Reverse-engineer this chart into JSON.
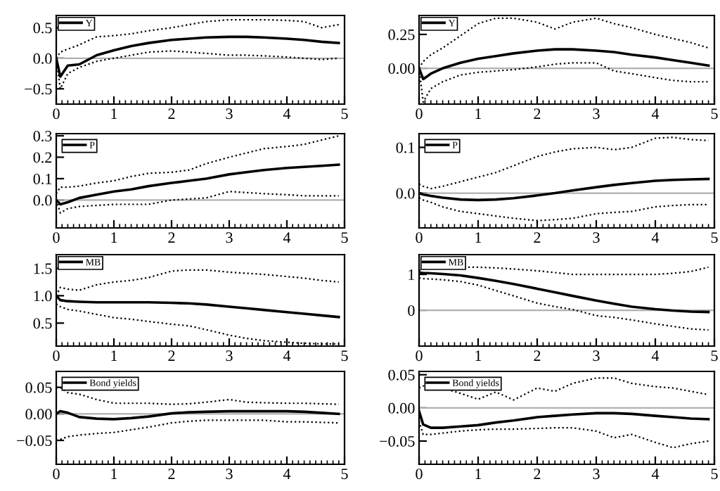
{
  "chart_data": [
    {
      "type": "line",
      "x": [
        0,
        0.07,
        0.2,
        0.4,
        0.7,
        1,
        1.3,
        1.6,
        2,
        2.3,
        2.6,
        3,
        3.3,
        3.6,
        4,
        4.3,
        4.6,
        4.9
      ],
      "xlim": [
        0,
        5
      ],
      "xticks": [
        0,
        1,
        2,
        3,
        4,
        5
      ],
      "ylim": [
        -0.75,
        0.7
      ],
      "yticks": [
        {
          "value": 0.5,
          "label": "0.5"
        },
        {
          "value": 0,
          "label": "0.0"
        },
        {
          "value": -0.5,
          "label": "−0.5"
        }
      ],
      "legend": "top left",
      "ref_lines": [
        {
          "axis": "y",
          "value": 0,
          "color": "#b0b0b0"
        }
      ],
      "series": [
        {
          "name": "Y",
          "color": "#000000",
          "values": [
            0,
            -0.3,
            -0.12,
            -0.1,
            0.05,
            0.13,
            0.2,
            0.25,
            0.3,
            0.32,
            0.34,
            0.35,
            0.35,
            0.34,
            0.32,
            0.3,
            0.27,
            0.25
          ]
        },
        {
          "color": "#000000",
          "line_style": "dotted",
          "values": [
            0,
            0.1,
            0.15,
            0.22,
            0.35,
            0.37,
            0.4,
            0.45,
            0.5,
            0.55,
            0.6,
            0.63,
            0.63,
            0.63,
            0.62,
            0.6,
            0.5,
            0.55
          ]
        },
        {
          "color": "#000000",
          "line_style": "dotted",
          "values": [
            0,
            -0.5,
            -0.25,
            -0.15,
            -0.05,
            0,
            0.05,
            0.1,
            0.12,
            0.1,
            0.08,
            0.05,
            0.05,
            0.04,
            0.02,
            0,
            -0.02,
            0
          ]
        }
      ]
    },
    {
      "type": "line",
      "x": [
        0,
        0.07,
        0.2,
        0.4,
        0.7,
        1,
        1.3,
        1.6,
        2,
        2.3,
        2.6,
        3,
        3.3,
        3.6,
        4,
        4.3,
        4.6,
        4.9
      ],
      "xlim": [
        0,
        5
      ],
      "xticks": [
        0,
        1,
        2,
        3,
        4,
        5
      ],
      "ylim": [
        -0.265,
        0.39
      ],
      "yticks": [
        {
          "value": 0.25,
          "label": "0.25"
        },
        {
          "value": 0,
          "label": "0.00"
        }
      ],
      "legend": "top left",
      "ref_lines": [
        {
          "axis": "y",
          "value": 0,
          "color": "#b0b0b0"
        }
      ],
      "series": [
        {
          "name": "Y",
          "color": "#000000",
          "values": [
            0,
            -0.08,
            -0.04,
            0,
            0.04,
            0.07,
            0.09,
            0.11,
            0.13,
            0.14,
            0.14,
            0.13,
            0.12,
            0.1,
            0.08,
            0.06,
            0.04,
            0.02
          ]
        },
        {
          "color": "#000000",
          "line_style": "dotted",
          "values": [
            0,
            0.05,
            0.1,
            0.15,
            0.24,
            0.33,
            0.37,
            0.37,
            0.34,
            0.29,
            0.34,
            0.37,
            0.33,
            0.3,
            0.25,
            0.22,
            0.19,
            0.15
          ]
        },
        {
          "color": "#000000",
          "line_style": "dotted",
          "values": [
            0,
            -0.25,
            -0.15,
            -0.1,
            -0.05,
            -0.03,
            -0.02,
            -0.01,
            0.01,
            0.03,
            0.04,
            0.04,
            -0.02,
            -0.04,
            -0.07,
            -0.09,
            -0.1,
            -0.1
          ]
        }
      ]
    },
    {
      "type": "line",
      "x": [
        0,
        0.07,
        0.2,
        0.4,
        0.7,
        1,
        1.3,
        1.6,
        2,
        2.3,
        2.6,
        3,
        3.3,
        3.6,
        4,
        4.3,
        4.6,
        4.9
      ],
      "xlim": [
        0,
        5
      ],
      "xticks": [
        0,
        1,
        2,
        3,
        4,
        5
      ],
      "ylim": [
        -0.13,
        0.31
      ],
      "yticks": [
        {
          "value": 0.3,
          "label": "0.3"
        },
        {
          "value": 0.2,
          "label": "0.2"
        },
        {
          "value": 0.1,
          "label": "0.1"
        },
        {
          "value": 0,
          "label": "0.0"
        }
      ],
      "legend": "top left",
      "ref_lines": [
        {
          "axis": "y",
          "value": 0,
          "color": "#b0b0b0"
        }
      ],
      "series": [
        {
          "name": "P",
          "color": "#000000",
          "values": [
            0,
            -0.02,
            -0.01,
            0.01,
            0.025,
            0.04,
            0.05,
            0.065,
            0.08,
            0.09,
            0.1,
            0.12,
            0.13,
            0.14,
            0.15,
            0.155,
            0.16,
            0.165
          ]
        },
        {
          "color": "#000000",
          "line_style": "dotted",
          "values": [
            0.03,
            0.06,
            0.06,
            0.065,
            0.08,
            0.09,
            0.11,
            0.125,
            0.13,
            0.14,
            0.17,
            0.2,
            0.22,
            0.24,
            0.25,
            0.26,
            0.28,
            0.3
          ]
        },
        {
          "color": "#000000",
          "line_style": "dotted",
          "values": [
            0,
            -0.06,
            -0.04,
            -0.03,
            -0.025,
            -0.02,
            -0.02,
            -0.02,
            0,
            0.005,
            0.01,
            0.04,
            0.035,
            0.03,
            0.025,
            0.02,
            0.02,
            0.02
          ]
        }
      ]
    },
    {
      "type": "line",
      "x": [
        0,
        0.07,
        0.2,
        0.4,
        0.7,
        1,
        1.3,
        1.6,
        2,
        2.3,
        2.6,
        3,
        3.3,
        3.6,
        4,
        4.3,
        4.6,
        4.9
      ],
      "xlim": [
        0,
        5
      ],
      "xticks": [
        0,
        1,
        2,
        3,
        4,
        5
      ],
      "ylim": [
        -0.076,
        0.13
      ],
      "yticks": [
        {
          "value": 0.1,
          "label": "0.1"
        },
        {
          "value": 0,
          "label": "0.0"
        }
      ],
      "legend": "top left",
      "ref_lines": [
        {
          "axis": "y",
          "value": 0,
          "color": "#b0b0b0"
        }
      ],
      "series": [
        {
          "name": "P",
          "color": "#000000",
          "values": [
            0,
            -0.003,
            -0.006,
            -0.01,
            -0.014,
            -0.015,
            -0.014,
            -0.011,
            -0.005,
            0,
            0.006,
            0.013,
            0.018,
            0.022,
            0.027,
            0.029,
            0.03,
            0.031
          ]
        },
        {
          "color": "#000000",
          "line_style": "dotted",
          "values": [
            0.02,
            0.015,
            0.01,
            0.015,
            0.025,
            0.035,
            0.045,
            0.06,
            0.08,
            0.09,
            0.097,
            0.1,
            0.095,
            0.1,
            0.12,
            0.122,
            0.117,
            0.115
          ]
        },
        {
          "color": "#000000",
          "line_style": "dotted",
          "values": [
            -0.01,
            -0.015,
            -0.02,
            -0.03,
            -0.04,
            -0.045,
            -0.05,
            -0.055,
            -0.06,
            -0.058,
            -0.055,
            -0.045,
            -0.042,
            -0.04,
            -0.03,
            -0.027,
            -0.025,
            -0.025
          ]
        }
      ]
    },
    {
      "type": "line",
      "x": [
        0,
        0.07,
        0.2,
        0.4,
        0.7,
        1,
        1.3,
        1.6,
        2,
        2.3,
        2.6,
        3,
        3.3,
        3.6,
        4,
        4.3,
        4.6,
        4.9
      ],
      "xlim": [
        0,
        5
      ],
      "xticks": [
        0,
        1,
        2,
        3,
        4,
        5
      ],
      "ylim": [
        0.08,
        1.75
      ],
      "yticks": [
        {
          "value": 1.5,
          "label": "1.5"
        },
        {
          "value": 1.0,
          "label": "1.0"
        },
        {
          "value": 0.5,
          "label": "0.5"
        }
      ],
      "legend": "top left",
      "series": [
        {
          "name": "MB",
          "color": "#000000",
          "values": [
            1.0,
            0.92,
            0.9,
            0.89,
            0.88,
            0.88,
            0.88,
            0.88,
            0.87,
            0.86,
            0.84,
            0.8,
            0.77,
            0.74,
            0.7,
            0.67,
            0.64,
            0.61
          ]
        },
        {
          "color": "#000000",
          "line_style": "dotted",
          "values": [
            1.0,
            1.15,
            1.12,
            1.1,
            1.2,
            1.25,
            1.28,
            1.33,
            1.45,
            1.47,
            1.47,
            1.43,
            1.41,
            1.39,
            1.35,
            1.32,
            1.28,
            1.25
          ]
        },
        {
          "color": "#000000",
          "line_style": "dotted",
          "values": [
            0.85,
            0.8,
            0.75,
            0.72,
            0.66,
            0.6,
            0.57,
            0.53,
            0.48,
            0.45,
            0.38,
            0.28,
            0.22,
            0.18,
            0.15,
            0.13,
            0.12,
            0.12
          ]
        }
      ]
    },
    {
      "type": "line",
      "x": [
        0,
        0.07,
        0.2,
        0.4,
        0.7,
        1,
        1.3,
        1.6,
        2,
        2.3,
        2.6,
        3,
        3.3,
        3.6,
        4,
        4.3,
        4.6,
        4.9
      ],
      "xlim": [
        0,
        5
      ],
      "xticks": [
        0,
        1,
        2,
        3,
        4,
        5
      ],
      "ylim": [
        -1,
        1.55
      ],
      "yticks": [
        1,
        0
      ],
      "legend": "top left",
      "ref_lines": [
        {
          "axis": "y",
          "value": 0,
          "color": "#b0b0b0"
        }
      ],
      "series": [
        {
          "name": "MB",
          "color": "#000000",
          "values": [
            1.05,
            1.04,
            1.03,
            1.01,
            0.97,
            0.9,
            0.82,
            0.73,
            0.6,
            0.5,
            0.4,
            0.27,
            0.18,
            0.1,
            0.03,
            -0.01,
            -0.04,
            -0.05
          ]
        },
        {
          "color": "#000000",
          "line_style": "dotted",
          "values": [
            1.1,
            1.15,
            1.18,
            1.2,
            1.2,
            1.2,
            1.18,
            1.15,
            1.1,
            1.05,
            1.0,
            1.0,
            1.0,
            1.0,
            1.0,
            1.03,
            1.08,
            1.2
          ]
        },
        {
          "color": "#000000",
          "line_style": "dotted",
          "values": [
            0.9,
            0.88,
            0.87,
            0.85,
            0.8,
            0.7,
            0.55,
            0.4,
            0.2,
            0.1,
            0.02,
            -0.15,
            -0.2,
            -0.27,
            -0.38,
            -0.45,
            -0.52,
            -0.55
          ]
        }
      ]
    },
    {
      "type": "line",
      "x": [
        0,
        0.07,
        0.2,
        0.4,
        0.7,
        1,
        1.3,
        1.6,
        2,
        2.3,
        2.6,
        3,
        3.3,
        3.6,
        4,
        4.3,
        4.6,
        4.9
      ],
      "xlim": [
        0,
        5
      ],
      "xticks": [
        0,
        1,
        2,
        3,
        4,
        5
      ],
      "ylim": [
        -0.095,
        0.08
      ],
      "yticks": [
        {
          "value": 0.05,
          "label": "0.05"
        },
        {
          "value": 0,
          "label": "0.00"
        },
        {
          "value": -0.05,
          "label": "−0.05"
        }
      ],
      "legend": "top left",
      "ref_lines": [
        {
          "axis": "y",
          "value": 0,
          "color": "#b0b0b0"
        }
      ],
      "series": [
        {
          "name": "Bond yields",
          "color": "#000000",
          "values": [
            0,
            0.005,
            0.002,
            -0.006,
            -0.009,
            -0.01,
            -0.008,
            -0.005,
            0.001,
            0.003,
            0.004,
            0.005,
            0.005,
            0.005,
            0.005,
            0.004,
            0.002,
            0
          ]
        },
        {
          "color": "#000000",
          "line_style": "dotted",
          "values": [
            0.05,
            0.05,
            0.04,
            0.037,
            0.027,
            0.02,
            0.02,
            0.02,
            0.018,
            0.019,
            0.022,
            0.027,
            0.022,
            0.021,
            0.02,
            0.02,
            0.019,
            0.018
          ]
        },
        {
          "color": "#000000",
          "line_style": "dotted",
          "values": [
            -0.05,
            -0.048,
            -0.043,
            -0.04,
            -0.037,
            -0.035,
            -0.03,
            -0.025,
            -0.017,
            -0.014,
            -0.012,
            -0.012,
            -0.012,
            -0.012,
            -0.015,
            -0.015,
            -0.016,
            -0.017
          ]
        }
      ]
    },
    {
      "type": "line",
      "x": [
        0,
        0.07,
        0.2,
        0.4,
        0.7,
        1,
        1.3,
        1.6,
        2,
        2.3,
        2.6,
        3,
        3.3,
        3.6,
        4,
        4.3,
        4.6,
        4.9
      ],
      "xlim": [
        0,
        5
      ],
      "xticks": [
        0,
        1,
        2,
        3,
        4,
        5
      ],
      "ylim": [
        -0.085,
        0.055
      ],
      "yticks": [
        {
          "value": 0.05,
          "label": "0.05"
        },
        {
          "value": 0,
          "label": "0.00"
        },
        {
          "value": -0.05,
          "label": "−0.05"
        }
      ],
      "legend": "top left",
      "ref_lines": [
        {
          "axis": "y",
          "value": 0,
          "color": "#b0b0b0"
        }
      ],
      "series": [
        {
          "name": "Bond yields",
          "color": "#000000",
          "values": [
            -0.005,
            -0.025,
            -0.03,
            -0.03,
            -0.028,
            -0.026,
            -0.022,
            -0.019,
            -0.014,
            -0.012,
            -0.01,
            -0.008,
            -0.008,
            -0.009,
            -0.012,
            -0.014,
            -0.016,
            -0.017
          ]
        },
        {
          "color": "#000000",
          "line_style": "dotted",
          "values": [
            0.03,
            0.033,
            0.033,
            0.03,
            0.022,
            0.013,
            0.024,
            0.012,
            0.03,
            0.025,
            0.037,
            0.045,
            0.045,
            0.037,
            0.032,
            0.03,
            0.025,
            0.02
          ]
        },
        {
          "color": "#000000",
          "line_style": "dotted",
          "values": [
            -0.02,
            -0.04,
            -0.04,
            -0.038,
            -0.035,
            -0.033,
            -0.032,
            -0.032,
            -0.031,
            -0.03,
            -0.03,
            -0.035,
            -0.045,
            -0.04,
            -0.052,
            -0.06,
            -0.054,
            -0.05
          ]
        }
      ]
    }
  ]
}
